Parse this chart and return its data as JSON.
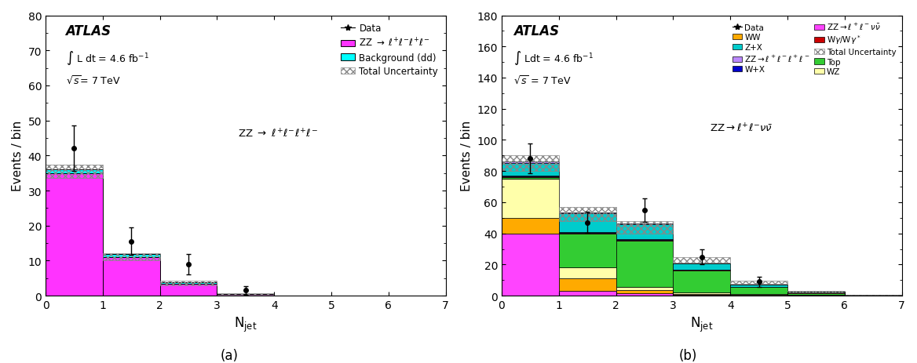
{
  "plot_a": {
    "bins": [
      0,
      1,
      2,
      3,
      4,
      5,
      6,
      7
    ],
    "zz4l_values": [
      35.0,
      11.0,
      3.5,
      0.5,
      0.05,
      0.02,
      0.01
    ],
    "background_dd": [
      1.0,
      0.8,
      0.3,
      0.1,
      0.02,
      0.01,
      0.005
    ],
    "unc_top": [
      37.5,
      12.2,
      4.2,
      0.7,
      0.08,
      0.03,
      0.015
    ],
    "unc_bot": [
      33.5,
      10.2,
      3.0,
      0.35,
      0.03,
      0.01,
      0.005
    ],
    "data_x": [
      0.5,
      1.5,
      2.5,
      3.5
    ],
    "data_vals": [
      42.0,
      15.5,
      9.0,
      1.5
    ],
    "data_lo": [
      6.5,
      3.9,
      3.0,
      1.2
    ],
    "data_hi": [
      6.5,
      3.9,
      3.0,
      1.2
    ],
    "ylim": [
      0,
      80
    ],
    "yticks": [
      0,
      10,
      20,
      30,
      40,
      50,
      60,
      70,
      80
    ],
    "ylabel": "Events / bin",
    "xlabel": "N$_{\\mathrm{jet}}$",
    "zz4l_color": "#FF33FF",
    "bg_dd_color": "#00FFFF",
    "atlas_text": "ATLAS",
    "lumi_text": "$\\int$ L dt = 4.6 fb$^{-1}$",
    "energy_text": "$\\sqrt{s}$= 7 TeV",
    "channel_text": "ZZ $\\rightarrow$ $\\ell^{+}\\ell^{-}\\ell^{+}\\ell^{-}$",
    "leg_zz4l": "ZZ $\\rightarrow$ $\\ell^{+}\\ell^{-}\\ell^{+}\\ell^{-}$",
    "leg_bgdd": "Background (dd)",
    "leg_unc": "Total Uncertainty",
    "leg_data": "Data"
  },
  "plot_b": {
    "bins": [
      0,
      1,
      2,
      3,
      4,
      5,
      6,
      7
    ],
    "zznunu_values": [
      40.0,
      3.0,
      1.5,
      0.5,
      0.2,
      0.05,
      0.01
    ],
    "zz4l_values": [
      1.0,
      0.3,
      0.2,
      0.1,
      0.05,
      0.02,
      0.01
    ],
    "ww_values": [
      10.0,
      8.0,
      2.0,
      0.8,
      0.3,
      0.1,
      0.02
    ],
    "wgamma_values": [
      0.5,
      0.5,
      0.3,
      0.2,
      0.1,
      0.05,
      0.01
    ],
    "wplusx_values": [
      0.5,
      0.5,
      0.3,
      0.2,
      0.1,
      0.05,
      0.01
    ],
    "zplux_values": [
      8.0,
      12.0,
      10.0,
      4.0,
      1.5,
      0.5,
      0.2
    ],
    "top_values": [
      1.0,
      22.0,
      30.0,
      14.0,
      4.5,
      1.5,
      0.3
    ],
    "wz_values": [
      25.0,
      7.0,
      2.0,
      1.0,
      0.5,
      0.2,
      0.05
    ],
    "unc_top": [
      90.0,
      57.0,
      48.0,
      25.0,
      9.5,
      3.0,
      0.7
    ],
    "unc_bot": [
      80.0,
      48.0,
      40.0,
      21.0,
      7.5,
      2.0,
      0.3
    ],
    "data_x": [
      0.5,
      1.5,
      2.5,
      3.5,
      4.5
    ],
    "data_vals": [
      88.0,
      47.0,
      55.0,
      25.0,
      9.0
    ],
    "data_lo": [
      9.5,
      6.9,
      7.4,
      5.0,
      3.2
    ],
    "data_hi": [
      9.5,
      6.9,
      7.4,
      5.0,
      3.2
    ],
    "ylim": [
      0,
      180
    ],
    "yticks": [
      0,
      20,
      40,
      60,
      80,
      100,
      120,
      140,
      160,
      180
    ],
    "ylabel": "Events / bin",
    "xlabel": "N$_{\\mathrm{jet}}$",
    "atlas_text": "ATLAS",
    "lumi_text": "$\\int$ Ldt = 4.6 fb$^{-1}$",
    "energy_text": "$\\sqrt{s}$ = 7 TeV",
    "channel_text": "ZZ$\\rightarrow$$\\ell^{+}\\ell^{-}$$\\nu\\bar{\\nu}$",
    "zznunu_color": "#FF44FF",
    "zz4l_color": "#BB88FF",
    "ww_color": "#FFAA00",
    "wgamma_color": "#CC0000",
    "wplusx_color": "#0000CC",
    "zplux_color": "#00CCCC",
    "top_color": "#33CC33",
    "wz_color": "#FFFFAA"
  }
}
